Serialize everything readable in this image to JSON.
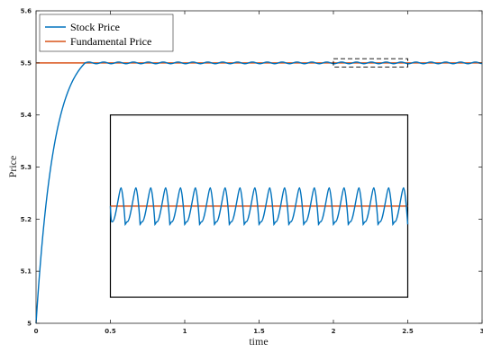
{
  "chart_data": {
    "type": "line",
    "xlabel": "time",
    "ylabel": "Price",
    "xlim": [
      0,
      3
    ],
    "ylim": [
      5,
      5.6
    ],
    "x_ticks": [
      "0",
      "0.5",
      "1",
      "1.5",
      "2",
      "2.5",
      "3"
    ],
    "y_ticks": [
      "5",
      "5.1",
      "5.2",
      "5.3",
      "5.4",
      "5.5",
      "5.6"
    ],
    "legend_position": "top-left",
    "series": [
      {
        "name": "Stock Price",
        "color": "#0072BD",
        "description_points": [
          [
            0,
            5.0
          ],
          [
            0.05,
            5.1
          ],
          [
            0.1,
            5.2
          ],
          [
            0.2,
            5.37
          ],
          [
            0.33,
            5.5
          ],
          [
            3,
            5.5
          ]
        ],
        "rise_tau": 0.12,
        "rise_end": 0.33,
        "oscillation": {
          "period": 0.1,
          "amplitude": 0.0016,
          "center": 5.5
        }
      },
      {
        "name": "Fundamental Price",
        "color": "#D95319",
        "value": 5.5
      }
    ],
    "zoom_region": {
      "x": [
        2,
        2.5
      ],
      "y": [
        5.492,
        5.508
      ]
    },
    "inset": {
      "x_range": [
        0.5,
        2.5
      ],
      "y_range": [
        5.05,
        5.4
      ],
      "periods": 20,
      "center": 5.225,
      "low": 5.195,
      "high": 5.26
    }
  }
}
